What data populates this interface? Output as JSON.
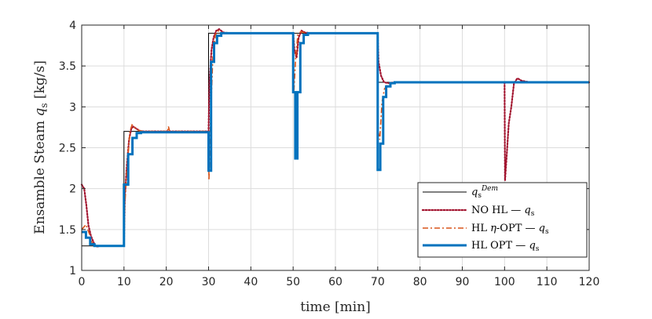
{
  "chart_data": {
    "type": "line",
    "xlabel": "time [min]",
    "ylabel": "Ensamble Steam q_s [kg/s]",
    "xlim": [
      0,
      120
    ],
    "ylim": [
      1,
      4
    ],
    "xticks": [
      0,
      10,
      20,
      30,
      40,
      50,
      60,
      70,
      80,
      90,
      100,
      110,
      120
    ],
    "yticks": [
      1,
      1.5,
      2,
      2.5,
      3,
      3.5,
      4
    ],
    "grid": true,
    "legend_position": "bottom-right",
    "series": [
      {
        "name": "q_s^Dem",
        "color": "#000000",
        "style": "solid",
        "points": [
          [
            0,
            1.3
          ],
          [
            10,
            1.3
          ],
          [
            10,
            2.7
          ],
          [
            30,
            2.7
          ],
          [
            30,
            3.9
          ],
          [
            50,
            3.9
          ],
          [
            50,
            3.9
          ],
          [
            70,
            3.9
          ],
          [
            70,
            3.3
          ],
          [
            120,
            3.3
          ]
        ]
      },
      {
        "name": "NO HL — q_s",
        "color": "#a2142f",
        "style": "dotted",
        "points": [
          [
            0,
            2.05
          ],
          [
            0.6,
            2.0
          ],
          [
            1.1,
            1.8
          ],
          [
            1.6,
            1.55
          ],
          [
            2.2,
            1.42
          ],
          [
            3.0,
            1.32
          ],
          [
            3.5,
            1.29
          ],
          [
            4.5,
            1.3
          ],
          [
            10,
            1.3
          ],
          [
            10.2,
            1.9
          ],
          [
            10.7,
            2.3
          ],
          [
            11.2,
            2.6
          ],
          [
            11.7,
            2.73
          ],
          [
            12.2,
            2.76
          ],
          [
            13,
            2.73
          ],
          [
            14,
            2.7
          ],
          [
            30,
            2.7
          ],
          [
            30.2,
            3.3
          ],
          [
            30.7,
            3.7
          ],
          [
            31.2,
            3.85
          ],
          [
            31.8,
            3.93
          ],
          [
            32.5,
            3.95
          ],
          [
            33.5,
            3.91
          ],
          [
            35,
            3.9
          ],
          [
            50,
            3.9
          ],
          [
            50.3,
            3.7
          ],
          [
            50.8,
            3.6
          ],
          [
            51.3,
            3.85
          ],
          [
            52,
            3.93
          ],
          [
            52.8,
            3.91
          ],
          [
            54,
            3.9
          ],
          [
            70,
            3.9
          ],
          [
            70.2,
            3.55
          ],
          [
            70.8,
            3.38
          ],
          [
            71.5,
            3.3
          ],
          [
            72.5,
            3.29
          ],
          [
            74,
            3.3
          ],
          [
            100,
            3.3
          ],
          [
            100.1,
            2.1
          ],
          [
            100.5,
            2.4
          ],
          [
            101,
            2.8
          ],
          [
            101.6,
            3.0
          ],
          [
            102.2,
            3.28
          ],
          [
            103,
            3.35
          ],
          [
            104,
            3.32
          ],
          [
            106,
            3.3
          ],
          [
            120,
            3.3
          ]
        ]
      },
      {
        "name": "HL η-OPT — q_s",
        "color": "#d95319",
        "style": "dashdot",
        "points": [
          [
            0,
            1.5
          ],
          [
            1,
            1.56
          ],
          [
            1.8,
            1.45
          ],
          [
            2.5,
            1.33
          ],
          [
            3.2,
            1.29
          ],
          [
            4.5,
            1.3
          ],
          [
            10,
            1.3
          ],
          [
            10.2,
            1.8
          ],
          [
            10.8,
            2.3
          ],
          [
            11.4,
            2.7
          ],
          [
            11.9,
            2.78
          ],
          [
            12.5,
            2.75
          ],
          [
            13.5,
            2.71
          ],
          [
            15,
            2.7
          ],
          [
            20.3,
            2.7
          ],
          [
            20.5,
            2.76
          ],
          [
            20.8,
            2.7
          ],
          [
            30,
            2.7
          ],
          [
            30.1,
            2.1
          ],
          [
            30.5,
            2.9
          ],
          [
            31,
            3.6
          ],
          [
            31.6,
            3.88
          ],
          [
            32.3,
            3.93
          ],
          [
            33.5,
            3.9
          ],
          [
            50,
            3.9
          ],
          [
            50.2,
            3.2
          ],
          [
            50.6,
            3.6
          ],
          [
            51.1,
            3.88
          ],
          [
            51.8,
            3.92
          ],
          [
            53,
            3.9
          ],
          [
            70,
            3.9
          ],
          [
            70.1,
            2.7
          ],
          [
            70.5,
            2.6
          ],
          [
            71,
            3.05
          ],
          [
            71.6,
            3.22
          ],
          [
            72.5,
            3.28
          ],
          [
            74,
            3.3
          ],
          [
            120,
            3.3
          ]
        ]
      },
      {
        "name": "HL OPT — q_s",
        "color": "#0072bd",
        "style": "solid-thick",
        "points": [
          [
            0,
            1.47
          ],
          [
            1,
            1.47
          ],
          [
            1,
            1.4
          ],
          [
            2,
            1.4
          ],
          [
            2,
            1.32
          ],
          [
            3,
            1.32
          ],
          [
            3,
            1.3
          ],
          [
            10,
            1.3
          ],
          [
            10,
            2.05
          ],
          [
            11,
            2.05
          ],
          [
            11,
            2.42
          ],
          [
            12,
            2.42
          ],
          [
            12,
            2.62
          ],
          [
            13,
            2.62
          ],
          [
            13,
            2.68
          ],
          [
            14,
            2.68
          ],
          [
            14,
            2.69
          ],
          [
            30,
            2.69
          ],
          [
            30,
            2.22
          ],
          [
            30.6,
            2.22
          ],
          [
            30.6,
            3.55
          ],
          [
            31.3,
            3.55
          ],
          [
            31.3,
            3.78
          ],
          [
            32,
            3.78
          ],
          [
            32,
            3.87
          ],
          [
            33,
            3.87
          ],
          [
            33,
            3.9
          ],
          [
            50,
            3.9
          ],
          [
            50,
            3.18
          ],
          [
            50.5,
            3.18
          ],
          [
            50.5,
            2.37
          ],
          [
            51,
            2.37
          ],
          [
            51,
            3.18
          ],
          [
            51.7,
            3.18
          ],
          [
            51.7,
            3.78
          ],
          [
            52.5,
            3.78
          ],
          [
            52.5,
            3.88
          ],
          [
            53.5,
            3.88
          ],
          [
            53.5,
            3.9
          ],
          [
            70,
            3.9
          ],
          [
            70,
            2.23
          ],
          [
            70.6,
            2.23
          ],
          [
            70.6,
            2.55
          ],
          [
            71.3,
            2.55
          ],
          [
            71.3,
            3.12
          ],
          [
            72,
            3.12
          ],
          [
            72,
            3.25
          ],
          [
            73,
            3.25
          ],
          [
            73,
            3.29
          ],
          [
            74,
            3.29
          ],
          [
            74,
            3.3
          ],
          [
            120,
            3.3
          ]
        ]
      }
    ]
  }
}
